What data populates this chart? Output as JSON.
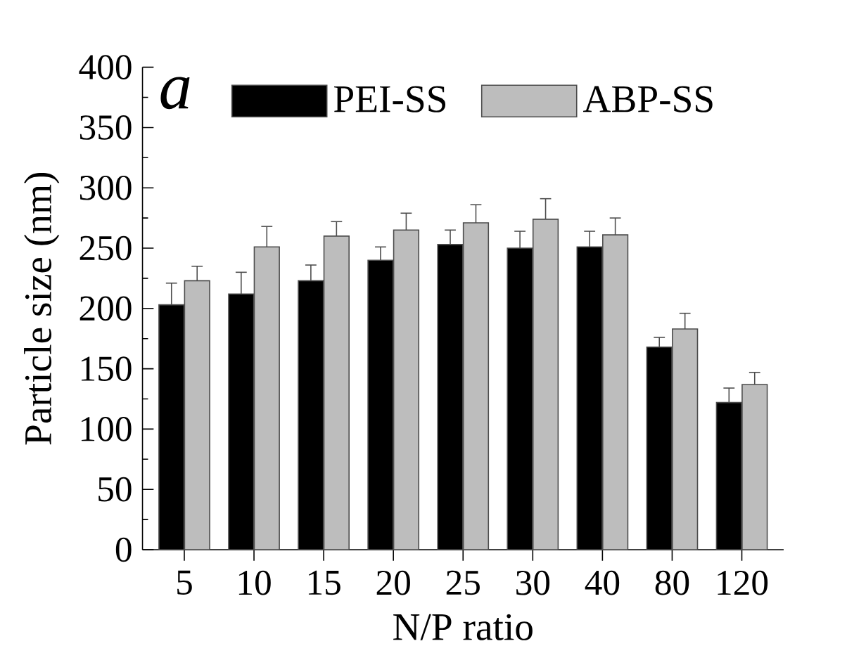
{
  "chart_data": {
    "type": "bar",
    "xlabel": "N/P ratio",
    "ylabel": "Particle size (nm)",
    "annotations": [
      "a"
    ],
    "categories": [
      "5",
      "10",
      "15",
      "20",
      "25",
      "30",
      "40",
      "80",
      "120"
    ],
    "series": [
      {
        "name": "PEI-SS",
        "color": "#000000",
        "values": [
          203,
          212,
          223,
          240,
          253,
          250,
          251,
          168,
          122
        ],
        "errors": [
          18,
          18,
          13,
          11,
          12,
          14,
          13,
          8,
          12
        ]
      },
      {
        "name": "ABP-SS",
        "color": "#bdbdbd",
        "values": [
          223,
          251,
          260,
          265,
          271,
          274,
          261,
          183,
          137
        ],
        "errors": [
          12,
          17,
          12,
          14,
          15,
          17,
          14,
          13,
          10
        ]
      }
    ],
    "ylim": [
      0,
      400
    ],
    "yticks": [
      0,
      50,
      100,
      150,
      200,
      250,
      300,
      350,
      400
    ],
    "legend": "top",
    "grid": false
  }
}
